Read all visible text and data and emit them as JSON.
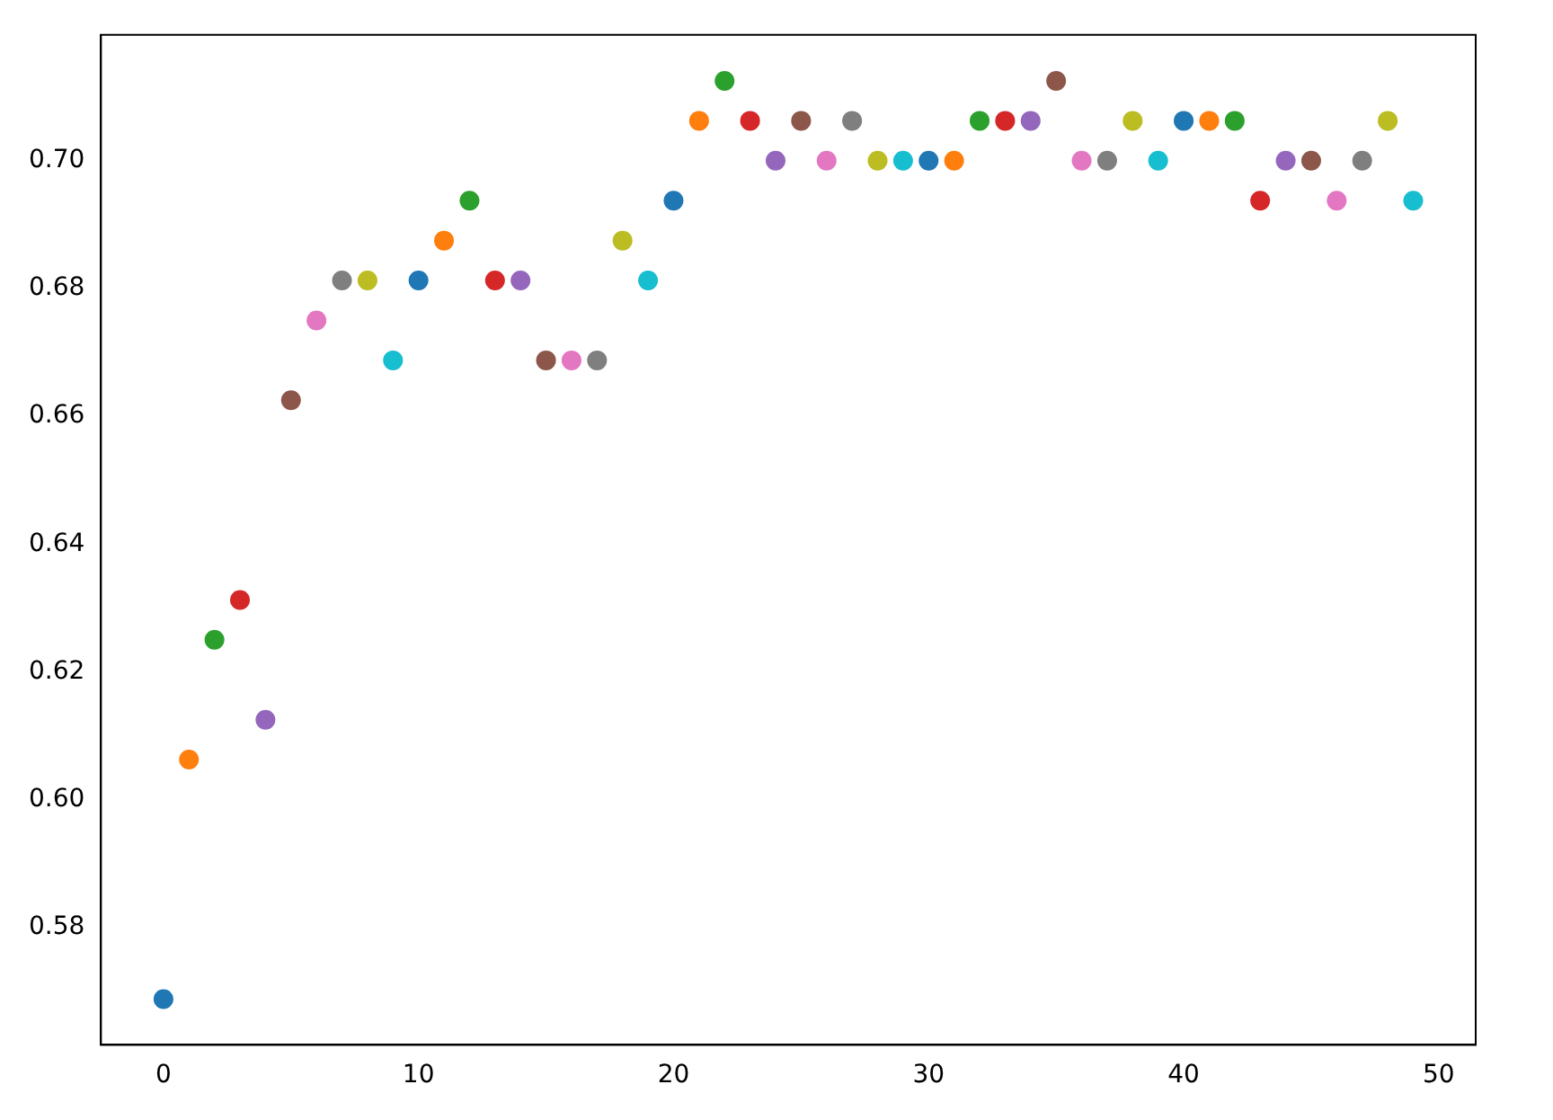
{
  "chart_data": {
    "type": "scatter",
    "x": [
      0,
      1,
      2,
      3,
      4,
      5,
      6,
      7,
      8,
      9,
      10,
      11,
      12,
      13,
      14,
      15,
      16,
      17,
      18,
      19,
      20,
      21,
      22,
      23,
      24,
      25,
      26,
      27,
      28,
      29,
      30,
      31,
      32,
      33,
      34,
      35,
      36,
      37,
      38,
      39,
      40,
      41,
      42,
      43,
      44,
      45,
      46,
      47,
      48,
      49
    ],
    "values": [
      0.56875,
      0.60625,
      0.625,
      0.63125,
      0.6125,
      0.6625,
      0.675,
      0.68125,
      0.68125,
      0.66875,
      0.68125,
      0.6875,
      0.69375,
      0.68125,
      0.68125,
      0.66875,
      0.66875,
      0.66875,
      0.6875,
      0.68125,
      0.69375,
      0.70625,
      0.7125,
      0.70625,
      0.7,
      0.70625,
      0.7,
      0.70625,
      0.7,
      0.7,
      0.7,
      0.7,
      0.70625,
      0.70625,
      0.70625,
      0.7125,
      0.7,
      0.7,
      0.70625,
      0.7,
      0.70625,
      0.70625,
      0.70625,
      0.69375,
      0.7,
      0.7,
      0.69375,
      0.7,
      0.70625,
      0.69375
    ],
    "colors": [
      "#1f77b4",
      "#ff7f0e",
      "#2ca02c",
      "#d62728",
      "#9467bd",
      "#8c564b",
      "#e377c2",
      "#7f7f7f",
      "#bcbd22",
      "#17becf",
      "#1f77b4",
      "#ff7f0e",
      "#2ca02c",
      "#d62728",
      "#9467bd",
      "#8c564b",
      "#e377c2",
      "#7f7f7f",
      "#bcbd22",
      "#17becf",
      "#1f77b4",
      "#ff7f0e",
      "#2ca02c",
      "#d62728",
      "#9467bd",
      "#8c564b",
      "#e377c2",
      "#7f7f7f",
      "#bcbd22",
      "#17becf",
      "#1f77b4",
      "#ff7f0e",
      "#2ca02c",
      "#d62728",
      "#9467bd",
      "#8c564b",
      "#e377c2",
      "#7f7f7f",
      "#bcbd22",
      "#17becf",
      "#1f77b4",
      "#ff7f0e",
      "#2ca02c",
      "#d62728",
      "#9467bd",
      "#8c564b",
      "#e377c2",
      "#7f7f7f",
      "#bcbd22",
      "#17becf"
    ],
    "xlim": [
      -2.45,
      51.45
    ],
    "xticks": [
      0,
      10,
      20,
      30,
      40,
      50
    ],
    "ylim": [
      0.5616,
      0.7197
    ],
    "yticks": [
      0.58,
      {
        "value": 0.6,
        "label": "0.60"
      },
      0.62,
      0.64,
      0.66,
      0.68,
      {
        "value": 0.7,
        "label": "0.70"
      }
    ],
    "marker": "circle",
    "grid": false,
    "legend": false
  }
}
